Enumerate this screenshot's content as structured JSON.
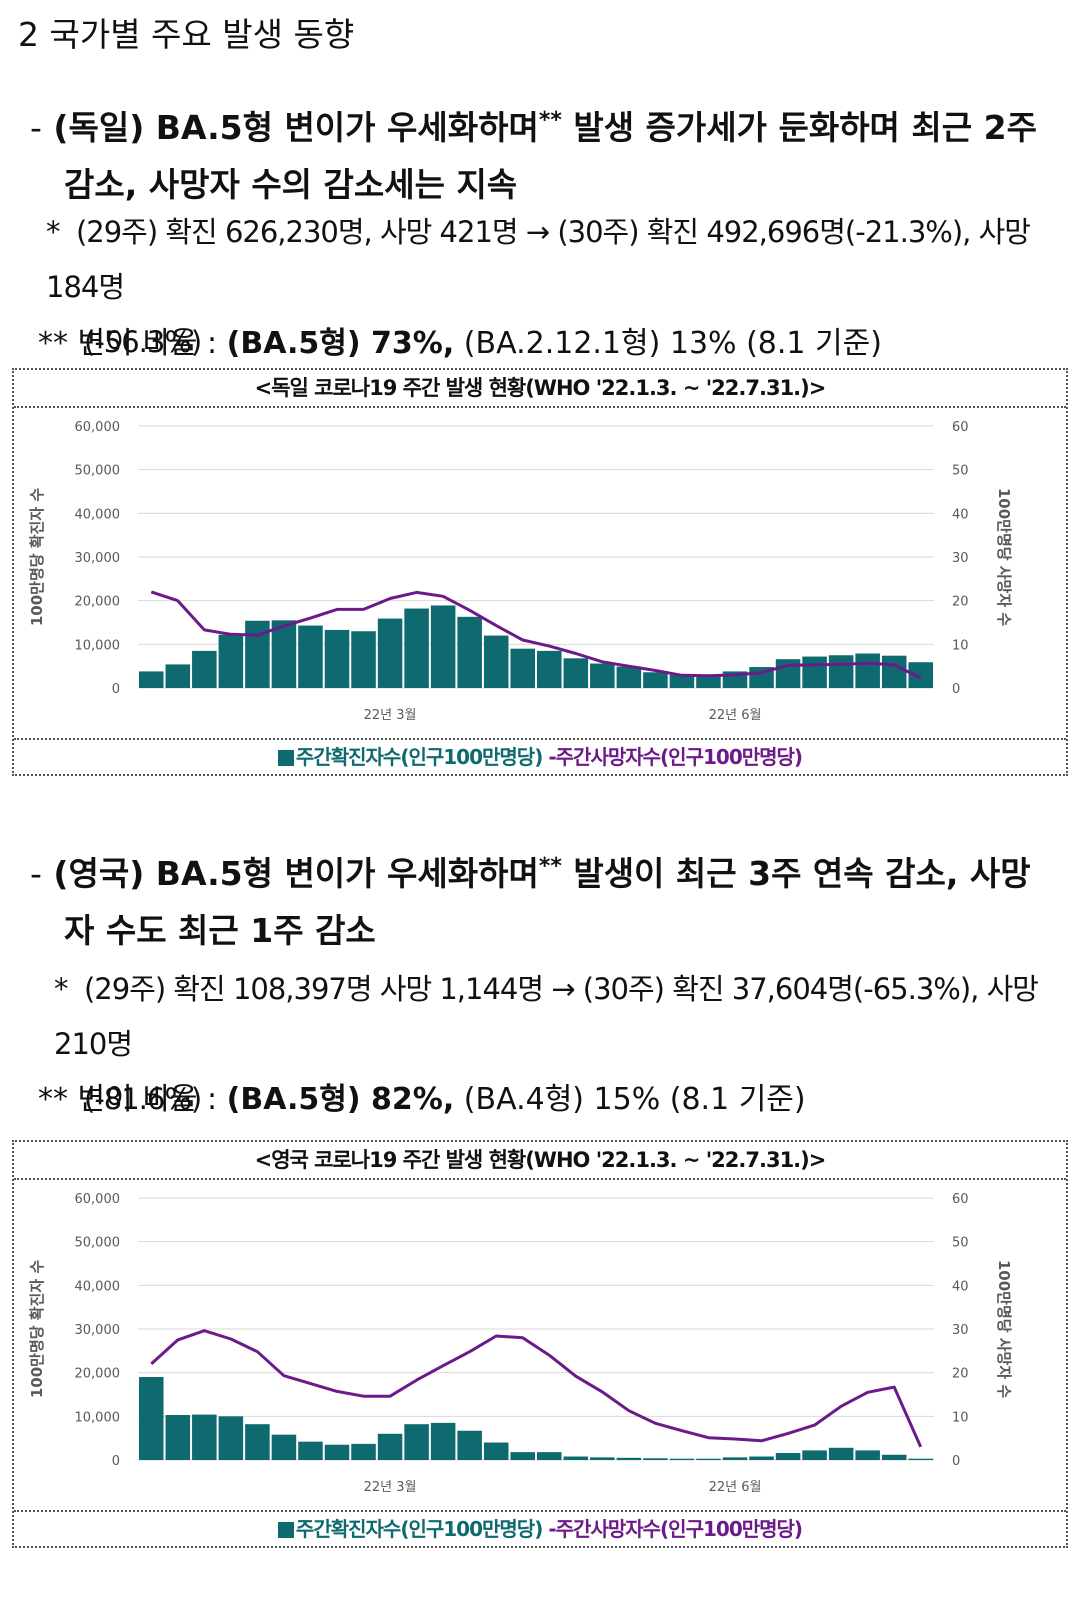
{
  "section_title": "2  국가별 주요 발생 동향",
  "germany": {
    "bullet_dash": "-",
    "bullet_line1_a": "(독일) BA.5형 변이가 우세화하며",
    "bullet_sup": "**",
    "bullet_line1_b": " 발생 증가세가 둔화하며 최근 2주",
    "bullet_line2": "감소, 사망자 수의 감소세는 지속",
    "note_star": "*",
    "note_line1": "(29주) 확진 626,230명, 사망 421명 → (30주) 확진 492,696명(-21.3%), 사망 184명",
    "note_line2": "(-56.3%)",
    "ratio_prefix": "** 변이 비율 : ",
    "ratio_bold": "(BA.5형) 73%,",
    "ratio_rest": " (BA.2.12.1형) 13% (8.1 기준)"
  },
  "uk": {
    "bullet_dash": "-",
    "bullet_line1_a": "(영국) BA.5형 변이가 우세화하며",
    "bullet_sup": "**",
    "bullet_line1_b": " 발생이 최근 3주 연속 감소, 사망",
    "bullet_line2": "자 수도 최근 1주 감소",
    "note_star": "*",
    "note_line1": "(29주) 확진 108,397명 사망 1,144명 → (30주) 확진 37,604명(-65.3%), 사망 210명",
    "note_line2": "(-81.6%)",
    "ratio_prefix": "** 변이 비율 : ",
    "ratio_bold": "(BA.5형) 82%,",
    "ratio_rest": " (BA.4형) 15% (8.1 기준)"
  },
  "legend": {
    "bar_label": "주간확진자수(인구100만명당)",
    "line_marker": "-",
    "line_label": "주간사망자수(인구100만명당)"
  },
  "colors": {
    "bar": "#0e6a6f",
    "line": "#6c1a8a",
    "grid": "#d9d9d9",
    "axis_text": "#595959"
  },
  "chart_data": [
    {
      "type": "bar+line",
      "title": "<독일 코로나19 주간 발생 현황(WHO '22.1.3. ~ '22.7.31.)>",
      "ylabel": "100만명당 확진자 수",
      "y2label": "100만명당 사망자 수",
      "ylim": [
        0,
        60000
      ],
      "y2lim": [
        0,
        60
      ],
      "y_ticks": [
        "0",
        "10,000",
        "20,000",
        "30,000",
        "40,000",
        "50,000",
        "60,000"
      ],
      "y2_ticks": [
        "0",
        "10",
        "20",
        "30",
        "40",
        "50",
        "60"
      ],
      "x_tick_labels": [
        {
          "label": "22년 3월",
          "index": 9
        },
        {
          "label": "22년 6월",
          "index": 22
        }
      ],
      "weeks": 30,
      "series": [
        {
          "name": "주간확진자수(인구100만명당)",
          "kind": "bar",
          "values": [
            3800,
            5400,
            8500,
            12200,
            15400,
            15500,
            14300,
            13300,
            13000,
            15900,
            18200,
            18900,
            16300,
            12000,
            9000,
            8500,
            6800,
            5600,
            4900,
            3600,
            3000,
            3000,
            3800,
            4800,
            6600,
            7200,
            7500,
            7900,
            7400,
            5900
          ]
        },
        {
          "name": "주간사망자수(인구100만명당)",
          "kind": "line",
          "values": [
            22,
            20,
            13.3,
            12.3,
            12.1,
            14.2,
            16,
            18,
            18,
            20.5,
            21.9,
            21,
            17.8,
            14.3,
            11,
            9.6,
            7.9,
            6,
            5,
            4,
            2.9,
            2.8,
            3,
            3.5,
            5.2,
            5.3,
            5.4,
            5.7,
            5.3,
            2.3
          ]
        }
      ]
    },
    {
      "type": "bar+line",
      "title": "<영국 코로나19 주간 발생 현황(WHO '22.1.3. ~ '22.7.31.)>",
      "ylabel": "100만명당 확진자 수",
      "y2label": "100만명당 사망자 수",
      "ylim": [
        0,
        60000
      ],
      "y2lim": [
        0,
        60
      ],
      "y_ticks": [
        "0",
        "10,000",
        "20,000",
        "30,000",
        "40,000",
        "50,000",
        "60,000"
      ],
      "y2_ticks": [
        "0",
        "10",
        "20",
        "30",
        "40",
        "50",
        "60"
      ],
      "x_tick_labels": [
        {
          "label": "22년 3월",
          "index": 9
        },
        {
          "label": "22년 6월",
          "index": 22
        }
      ],
      "weeks": 30,
      "series": [
        {
          "name": "주간확진자수(인구100만명당)",
          "kind": "bar",
          "values": [
            19000,
            10300,
            10400,
            10000,
            8200,
            5800,
            4200,
            3500,
            3700,
            6000,
            8200,
            8500,
            6700,
            4000,
            1800,
            1800,
            800,
            600,
            500,
            400,
            300,
            300,
            600,
            800,
            1600,
            2200,
            2800,
            2200,
            1200,
            300
          ]
        },
        {
          "name": "주간사망자수(인구100만명당)",
          "kind": "line",
          "values": [
            22,
            27.5,
            29.6,
            27.7,
            24.8,
            19.3,
            17.5,
            15.7,
            14.6,
            14.6,
            18.3,
            21.6,
            24.8,
            28.4,
            28,
            24,
            19.2,
            15.6,
            11.3,
            8.4,
            6.7,
            5.1,
            4.8,
            4.4,
            6.1,
            8,
            12.3,
            15.5,
            16.7,
            3
          ]
        }
      ]
    }
  ]
}
